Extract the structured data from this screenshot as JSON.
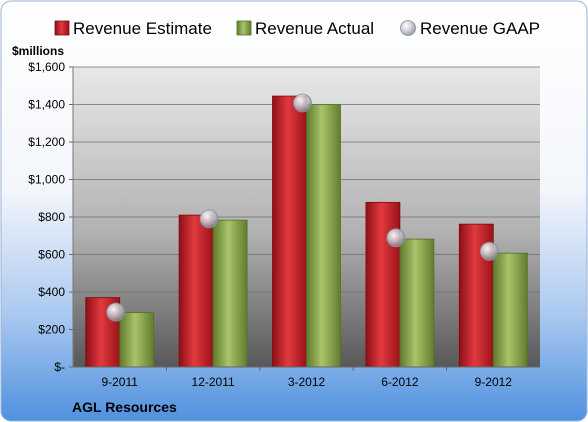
{
  "chart_data": {
    "type": "bar",
    "title": "",
    "company": "AGL Resources",
    "ylabel": "$millions",
    "xlabel": "",
    "categories": [
      "9-2011",
      "12-2011",
      "3-2012",
      "6-2012",
      "9-2012"
    ],
    "ylim": [
      0,
      1600
    ],
    "y_ticks": [
      0,
      200,
      400,
      600,
      800,
      1000,
      1200,
      1400,
      1600
    ],
    "y_tick_labels": [
      "$-",
      "$200",
      "$400",
      "$600",
      "$800",
      "$1,000",
      "$1,200",
      "$1,400",
      "$1,600"
    ],
    "grid": true,
    "legend_position": "top",
    "series": [
      {
        "name": "Revenue Estimate",
        "kind": "bar",
        "color": "#c8202a",
        "values": [
          370,
          810,
          1445,
          878,
          762
        ]
      },
      {
        "name": "Revenue Actual",
        "kind": "bar",
        "color": "#8aa84a",
        "values": [
          290,
          783,
          1400,
          682,
          607
        ]
      },
      {
        "name": "Revenue GAAP",
        "kind": "marker",
        "color": "#b9bcc4",
        "values": [
          293,
          790,
          1408,
          689,
          617
        ]
      }
    ]
  },
  "colors": {
    "background_top": "#ffffff",
    "background_bottom": "#5b9be0",
    "plot_top": "#e6e6e6",
    "plot_bottom": "#555555"
  }
}
